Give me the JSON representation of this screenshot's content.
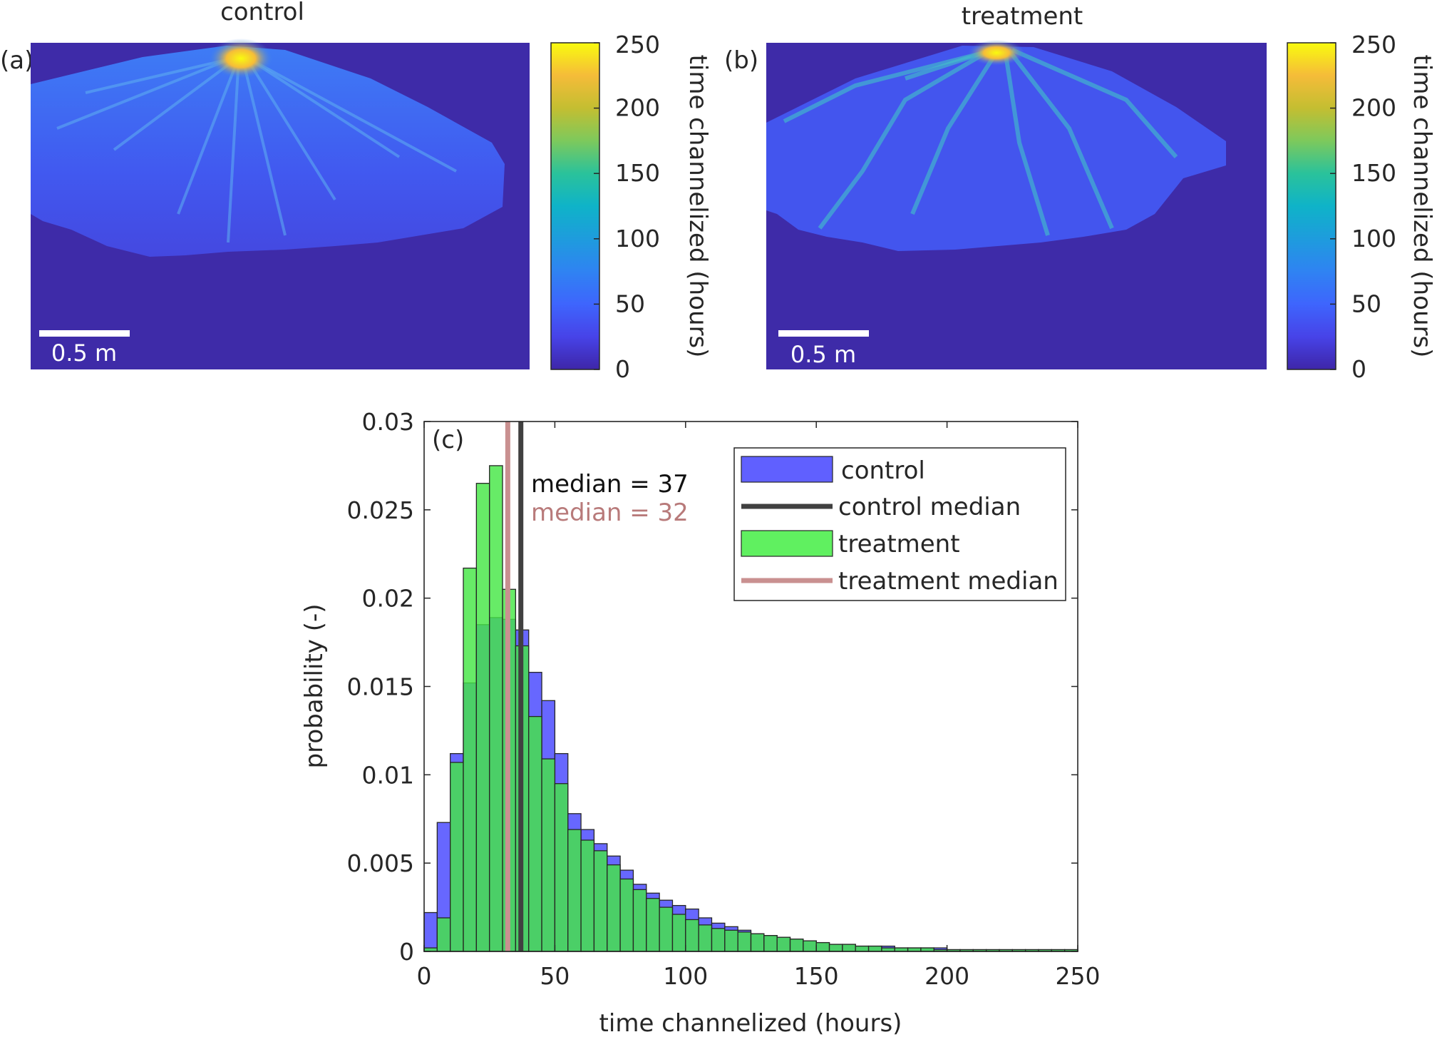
{
  "chart_data": [
    {
      "type": "heatmap",
      "panel_label": "(a)",
      "title": "control",
      "scale_bar_label": "0.5 m",
      "colorbar": {
        "label": "time channelized (hours)",
        "ticks": [
          0,
          50,
          100,
          150,
          200,
          250
        ],
        "range": [
          0,
          250
        ],
        "colormap": "parula"
      }
    },
    {
      "type": "heatmap",
      "panel_label": "(b)",
      "title": "treatment",
      "scale_bar_label": "0.5 m",
      "colorbar": {
        "label": "time channelized (hours)",
        "ticks": [
          0,
          50,
          100,
          150,
          200,
          250
        ],
        "range": [
          0,
          250
        ],
        "colormap": "parula"
      }
    },
    {
      "type": "bar",
      "panel_label": "(c)",
      "xlabel": "time channelized (hours)",
      "ylabel": "probability (-)",
      "xlim": [
        0,
        250
      ],
      "ylim": [
        0,
        0.03
      ],
      "xticks": [
        0,
        50,
        100,
        150,
        200,
        250
      ],
      "yticks": [
        0,
        0.005,
        0.01,
        0.015,
        0.02,
        0.025,
        0.03
      ],
      "bin_width": 5,
      "bin_edges_start": [
        0,
        5,
        10,
        15,
        20,
        25,
        30,
        35,
        40,
        45,
        50,
        55,
        60,
        65,
        70,
        75,
        80,
        85,
        90,
        95,
        100,
        105,
        110,
        115,
        120,
        125,
        130,
        135,
        140,
        145,
        150,
        155,
        160,
        165,
        170,
        175,
        180,
        185,
        190,
        195,
        200,
        205,
        210,
        215,
        220,
        225,
        230,
        235,
        240,
        245
      ],
      "series": [
        {
          "name": "control",
          "color": "#6060ff",
          "values": [
            0.0022,
            0.0073,
            0.0112,
            0.0152,
            0.0185,
            0.0189,
            0.0188,
            0.0182,
            0.0158,
            0.0142,
            0.0112,
            0.0078,
            0.0069,
            0.0061,
            0.0054,
            0.0046,
            0.0038,
            0.0033,
            0.0029,
            0.0026,
            0.0024,
            0.0019,
            0.0016,
            0.0014,
            0.0012,
            0.001,
            0.0009,
            0.0008,
            0.0007,
            0.0006,
            0.0005,
            0.0004,
            0.0004,
            0.0003,
            0.0003,
            0.0003,
            0.0002,
            0.0002,
            0.0002,
            0.0002,
            0.0001,
            0.0001,
            0.0001,
            0.0001,
            0.0001,
            0.0001,
            0.0001,
            0.0001,
            0.0001,
            0.0001
          ]
        },
        {
          "name": "treatment",
          "color": "#50f050",
          "values": [
            0.0002,
            0.0019,
            0.0107,
            0.0217,
            0.0265,
            0.0275,
            0.0205,
            0.0173,
            0.0133,
            0.0109,
            0.0095,
            0.0069,
            0.0063,
            0.0057,
            0.0049,
            0.0041,
            0.0035,
            0.003,
            0.0025,
            0.0021,
            0.0018,
            0.0015,
            0.0013,
            0.0012,
            0.0011,
            0.001,
            0.0009,
            0.0008,
            0.0007,
            0.0006,
            0.0005,
            0.0004,
            0.0004,
            0.0003,
            0.0003,
            0.0002,
            0.0002,
            0.0002,
            0.0002,
            0.0001,
            0.0001,
            0.0001,
            0.0001,
            0.0001,
            0.0001,
            0.0001,
            0.0001,
            0.0001,
            0.0001,
            0.0001
          ]
        }
      ],
      "medians": [
        {
          "name": "control median",
          "value": 37,
          "label": "median = 37",
          "color": "#404040"
        },
        {
          "name": "treatment median",
          "value": 32,
          "label": "median = 32",
          "color": "#c99090"
        }
      ],
      "legend": {
        "placement": "top-right",
        "entries": [
          "control",
          "control median",
          "treatment",
          "treatment median"
        ]
      }
    }
  ]
}
